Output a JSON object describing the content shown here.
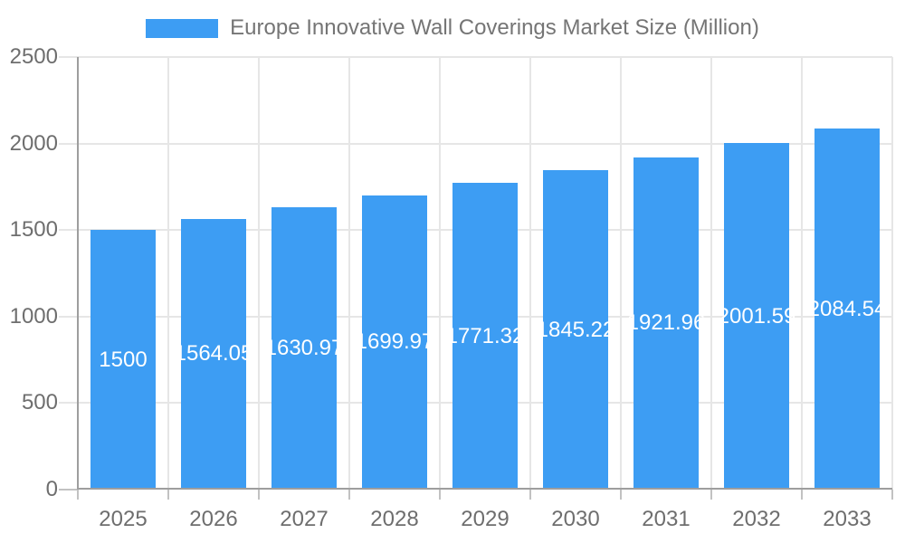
{
  "chart_data": {
    "type": "bar",
    "title": "Europe Innovative Wall Coverings Market Size (Million)",
    "categories": [
      "2025",
      "2026",
      "2027",
      "2028",
      "2029",
      "2030",
      "2031",
      "2032",
      "2033"
    ],
    "values": [
      1500,
      1564.05,
      1630.97,
      1699.97,
      1771.32,
      1845.22,
      1921.96,
      2001.59,
      2084.54
    ],
    "bar_labels": [
      "1500",
      "1564.05",
      "1630.97",
      "1699.97",
      "1771.32",
      "1845.22",
      "1921.96",
      "2001.59",
      "2084.54"
    ],
    "xlabel": "",
    "ylabel": "",
    "ylim": [
      0,
      2500
    ],
    "yticks": [
      0,
      500,
      1000,
      1500,
      2000,
      2500
    ],
    "grid": true,
    "legend_position": "top",
    "colors": {
      "bar": "#3d9df3",
      "value_label": "#ffffff",
      "axis_line": "#9e9e9e",
      "gridline": "#e6e6e6",
      "tick_stub": "#c2c2c2",
      "tick_label": "#6e6e6e",
      "title": "#757575"
    }
  }
}
